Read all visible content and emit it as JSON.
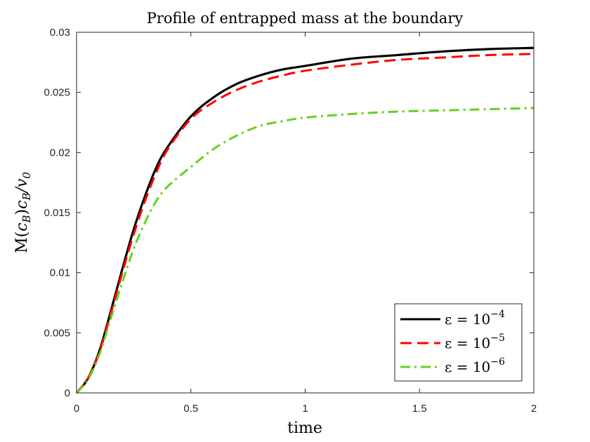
{
  "chart_data": {
    "type": "line",
    "title": "Profile of entrapped mass at the boundary",
    "xlabel": "time",
    "ylabel": "M(c_B)c_B/v_0",
    "xlim": [
      0,
      2
    ],
    "ylim": [
      0,
      0.03
    ],
    "xticks": [
      0,
      0.5,
      1,
      1.5,
      2
    ],
    "xtick_labels": [
      "0",
      "0.5",
      "1",
      "1.5",
      "2"
    ],
    "yticks": [
      0,
      0.005,
      0.01,
      0.015,
      0.02,
      0.025,
      0.03
    ],
    "ytick_labels": [
      "0",
      "0.005",
      "0.01",
      "0.015",
      "0.02",
      "0.025",
      "0.03"
    ],
    "grid": false,
    "legend_position": "bottom-right",
    "x": [
      0,
      0.05,
      0.1,
      0.15,
      0.2,
      0.25,
      0.3,
      0.35,
      0.4,
      0.5,
      0.6,
      0.7,
      0.8,
      0.9,
      1.0,
      1.2,
      1.4,
      1.6,
      1.8,
      2.0
    ],
    "series": [
      {
        "name": "ε = 10^-4",
        "label_base": "ε = 10",
        "label_exp": "−4",
        "color": "#000000",
        "style": "solid",
        "values": [
          0,
          0.0012,
          0.0035,
          0.0068,
          0.0103,
          0.0136,
          0.0164,
          0.0188,
          0.0205,
          0.023,
          0.0246,
          0.0257,
          0.0264,
          0.0269,
          0.0272,
          0.0278,
          0.0281,
          0.0284,
          0.0286,
          0.0287
        ]
      },
      {
        "name": "ε = 10^-5",
        "label_base": "ε = 10",
        "label_exp": "−5",
        "color": "#ff0000",
        "style": "dashed",
        "values": [
          0,
          0.0012,
          0.0034,
          0.0066,
          0.01,
          0.0132,
          0.016,
          0.0184,
          0.0203,
          0.0228,
          0.0242,
          0.0252,
          0.0259,
          0.0264,
          0.0268,
          0.0273,
          0.0277,
          0.0279,
          0.0281,
          0.0282
        ]
      },
      {
        "name": "ε = 10^-6",
        "label_base": "ε = 10",
        "label_exp": "−6",
        "color": "#66d11f",
        "style": "dashdot",
        "values": [
          0,
          0.0011,
          0.0032,
          0.0062,
          0.0092,
          0.012,
          0.0142,
          0.016,
          0.0172,
          0.0188,
          0.0203,
          0.0214,
          0.0222,
          0.0226,
          0.0229,
          0.0232,
          0.0234,
          0.0235,
          0.0236,
          0.0237
        ]
      }
    ]
  }
}
